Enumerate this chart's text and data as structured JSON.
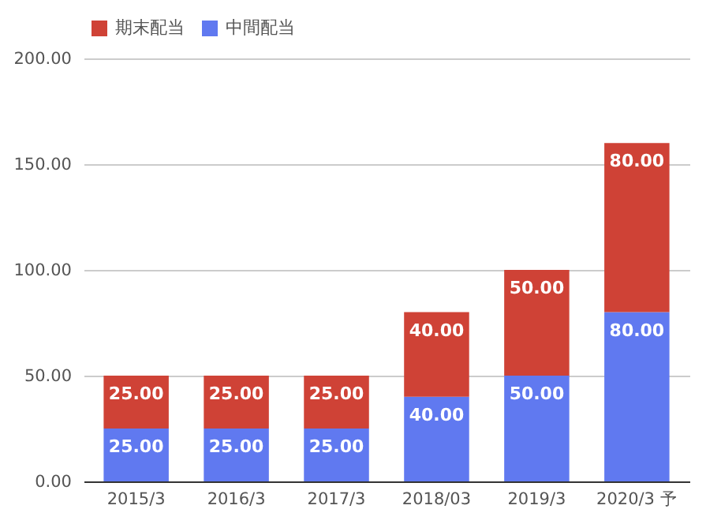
{
  "chart_data": {
    "type": "bar",
    "stacked": true,
    "categories": [
      "2015/3",
      "2016/3",
      "2017/3",
      "2018/03",
      "2019/3",
      "2020/3 予"
    ],
    "series": [
      {
        "name": "中間配当",
        "color": "#6079f0",
        "values": [
          25,
          25,
          25,
          40,
          50,
          80
        ],
        "value_labels": [
          "25.00",
          "25.00",
          "25.00",
          "40.00",
          "50.00",
          "80.00"
        ]
      },
      {
        "name": "期末配当",
        "color": "#cf4236",
        "values": [
          25,
          25,
          25,
          40,
          50,
          80
        ],
        "value_labels": [
          "25.00",
          "25.00",
          "25.00",
          "40.00",
          "50.00",
          "80.00"
        ]
      }
    ],
    "ylim": [
      0,
      200
    ],
    "yticks": [
      {
        "value": 0,
        "label": "0.00"
      },
      {
        "value": 50,
        "label": "50.00"
      },
      {
        "value": 100,
        "label": "100.00"
      },
      {
        "value": 150,
        "label": "150.00"
      },
      {
        "value": 200,
        "label": "200.00"
      }
    ],
    "grid": "y",
    "legend": "top"
  }
}
